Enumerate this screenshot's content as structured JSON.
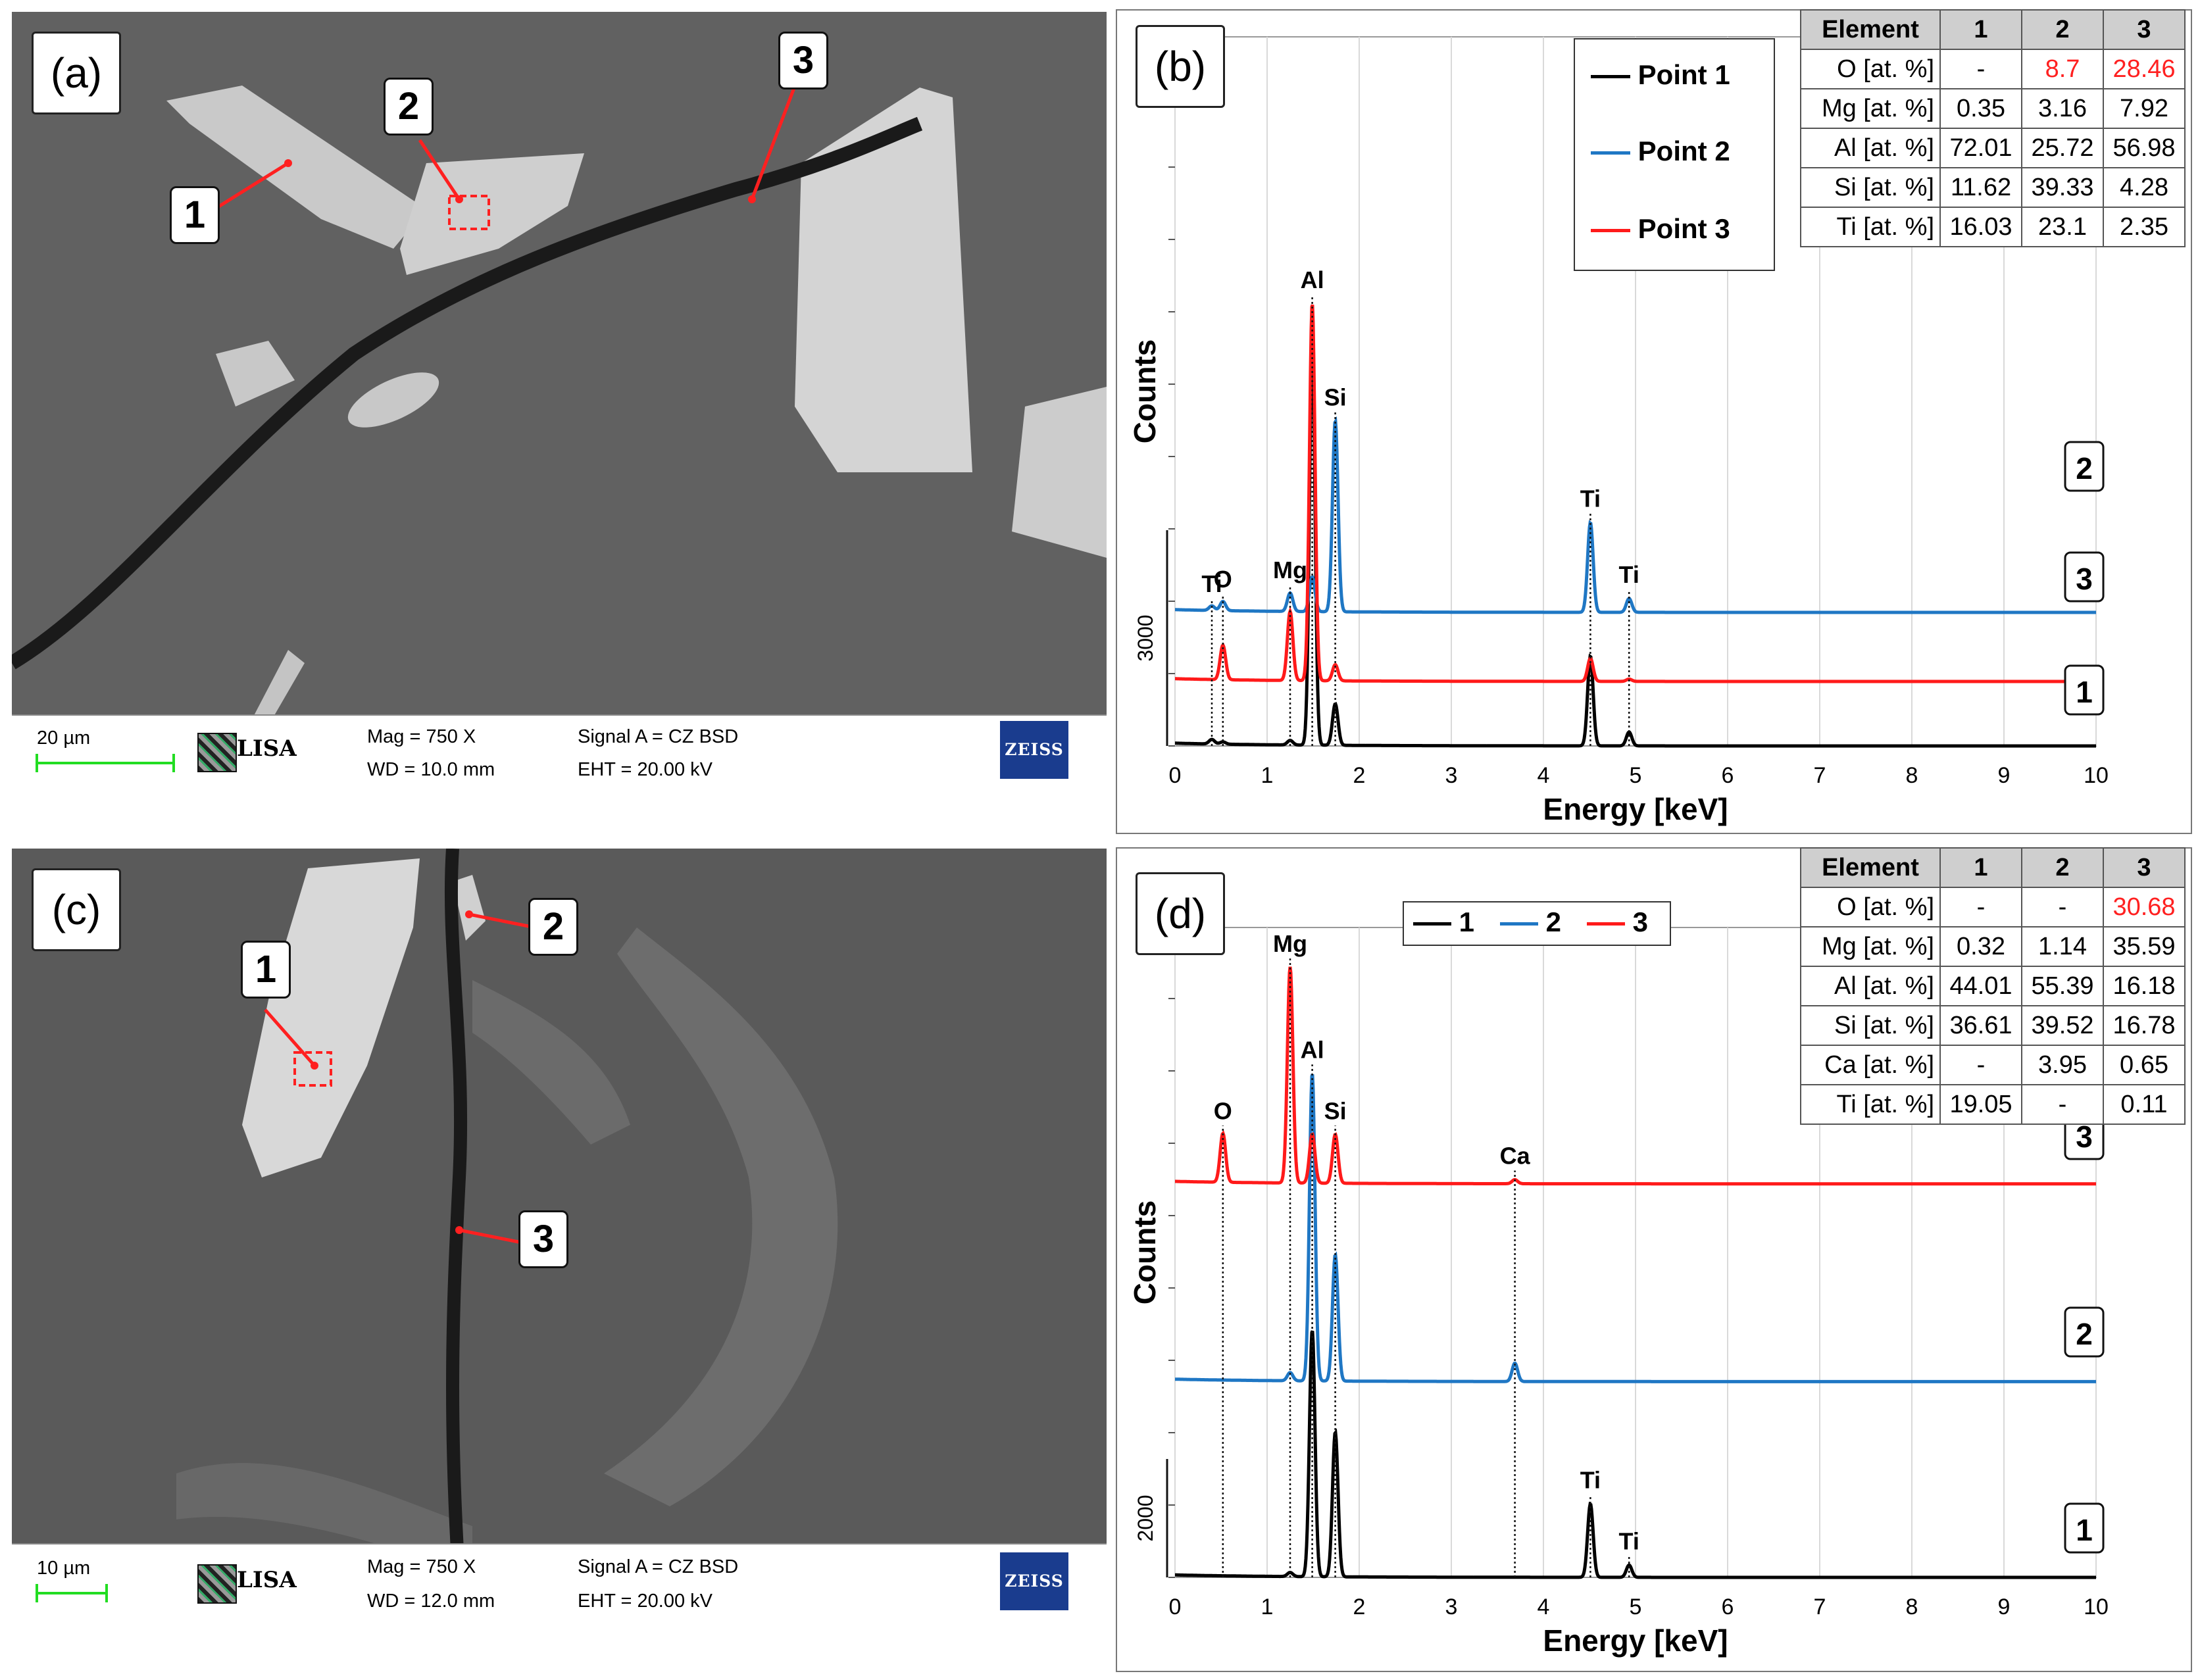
{
  "panels": {
    "a": {
      "label": "(a)",
      "callouts": [
        "1",
        "2",
        "3"
      ],
      "infobar": {
        "scale": "20 µm",
        "mag": "Mag =     750 X",
        "wd": "WD = 10.0 mm",
        "signal": "Signal A = CZ BSD",
        "eht": "EHT = 20.00 kV",
        "logo_lisa": "LISA",
        "logo_zeiss": "ZEISS"
      }
    },
    "b": {
      "label": "(b)",
      "legend": [
        "Point 1",
        "Point 2",
        "Point 3"
      ],
      "table": {
        "headers": [
          "Element",
          "1",
          "2",
          "3"
        ],
        "rows": [
          [
            "O [at. %]",
            "-",
            "8.7",
            "28.46"
          ],
          [
            "Mg [at. %]",
            "0.35",
            "3.16",
            "7.92"
          ],
          [
            "Al [at. %]",
            "72.01",
            "25.72",
            "56.98"
          ],
          [
            "Si [at. %]",
            "11.62",
            "39.33",
            "4.28"
          ],
          [
            "Ti [at. %]",
            "16.03",
            "23.1",
            "2.35"
          ]
        ]
      },
      "curve_tags": [
        "2",
        "3",
        "1"
      ],
      "scale_bar_label": "3000"
    },
    "c": {
      "label": "(c)",
      "callouts": [
        "1",
        "2",
        "3"
      ],
      "infobar": {
        "scale": "10 µm",
        "mag": "Mag =     750 X",
        "wd": "WD = 12.0 mm",
        "signal": "Signal A = CZ BSD",
        "eht": "EHT = 20.00 kV",
        "logo_lisa": "LISA",
        "logo_zeiss": "ZEISS"
      }
    },
    "d": {
      "label": "(d)",
      "legend": [
        "1",
        "2",
        "3"
      ],
      "table": {
        "headers": [
          "Element",
          "1",
          "2",
          "3"
        ],
        "rows": [
          [
            "O [at. %]",
            "-",
            "-",
            "30.68"
          ],
          [
            "Mg [at. %]",
            "0.32",
            "1.14",
            "35.59"
          ],
          [
            "Al [at. %]",
            "44.01",
            "55.39",
            "16.18"
          ],
          [
            "Si [at. %]",
            "36.61",
            "39.52",
            "16.78"
          ],
          [
            "Ca [at. %]",
            "-",
            "3.95",
            "0.65"
          ],
          [
            "Ti [at. %]",
            "19.05",
            "-",
            "0.11"
          ]
        ]
      },
      "curve_tags": [
        "3",
        "2",
        "1"
      ],
      "scale_bar_label": "2000"
    }
  },
  "colors": {
    "point1": "#000000",
    "point2": "#1f77c4",
    "point3": "#ff1a1a",
    "highlight": "#ff2020",
    "zeiss_blue": "#1a3c8e",
    "scale_green": "#22dd22"
  },
  "chart_data": [
    {
      "type": "line",
      "panel": "b",
      "xlabel": "Energy [keV]",
      "ylabel": "Counts",
      "xlim": [
        0,
        10
      ],
      "x_ticks": [
        0,
        1,
        2,
        3,
        4,
        5,
        6,
        7,
        8,
        9,
        10
      ],
      "grid": true,
      "legend_position": "top-right",
      "peak_labels": [
        {
          "text": "Ti",
          "x": 0.4
        },
        {
          "text": "O",
          "x": 0.52
        },
        {
          "text": "Mg",
          "x": 1.25
        },
        {
          "text": "Al",
          "x": 1.49
        },
        {
          "text": "Si",
          "x": 1.74
        },
        {
          "text": "Ti",
          "x": 4.51
        },
        {
          "text": "Ti",
          "x": 4.93
        }
      ],
      "series": [
        {
          "name": "Point 1",
          "color": "#000000",
          "offset": 0,
          "peaks": [
            [
              0.4,
              0.2
            ],
            [
              0.52,
              0.1
            ],
            [
              1.25,
              0.2
            ],
            [
              1.49,
              17.5
            ],
            [
              1.74,
              1.8
            ],
            [
              4.51,
              3.9
            ],
            [
              4.93,
              0.6
            ]
          ]
        },
        {
          "name": "Point 2",
          "color": "#1f77c4",
          "offset": 5.8,
          "peaks": [
            [
              0.4,
              0.2
            ],
            [
              0.52,
              0.4
            ],
            [
              1.25,
              0.8
            ],
            [
              1.49,
              1.5
            ],
            [
              1.74,
              8.3
            ],
            [
              4.51,
              3.9
            ],
            [
              4.93,
              0.6
            ]
          ]
        },
        {
          "name": "Point 3",
          "color": "#ff1a1a",
          "offset": 2.8,
          "peaks": [
            [
              0.52,
              1.5
            ],
            [
              1.25,
              3.0
            ],
            [
              1.49,
              16.4
            ],
            [
              1.74,
              0.7
            ],
            [
              4.51,
              1.0
            ],
            [
              4.93,
              0.1
            ]
          ]
        }
      ]
    },
    {
      "type": "line",
      "panel": "d",
      "xlabel": "Energy [keV]",
      "ylabel": "Counts",
      "xlim": [
        0,
        10
      ],
      "x_ticks": [
        0,
        1,
        2,
        3,
        4,
        5,
        6,
        7,
        8,
        9,
        10
      ],
      "grid": true,
      "legend_position": "top",
      "peak_labels": [
        {
          "text": "O",
          "x": 0.52
        },
        {
          "text": "Mg",
          "x": 1.25
        },
        {
          "text": "Al",
          "x": 1.49
        },
        {
          "text": "Si",
          "x": 1.74
        },
        {
          "text": "Ca",
          "x": 3.69
        },
        {
          "text": "Ti",
          "x": 4.51
        },
        {
          "text": "Ti",
          "x": 4.93
        }
      ],
      "series": [
        {
          "name": "1",
          "color": "#000000",
          "offset": 0,
          "peaks": [
            [
              1.25,
              0.2
            ],
            [
              1.49,
              12.1
            ],
            [
              1.74,
              7.1
            ],
            [
              4.51,
              3.6
            ],
            [
              4.93,
              0.6
            ]
          ]
        },
        {
          "name": "2",
          "color": "#1f77c4",
          "offset": 9.6,
          "peaks": [
            [
              1.25,
              0.4
            ],
            [
              1.49,
              15.1
            ],
            [
              1.74,
              6.2
            ],
            [
              3.69,
              0.9
            ]
          ]
        },
        {
          "name": "3",
          "color": "#ff1a1a",
          "offset": 19.3,
          "peaks": [
            [
              0.52,
              2.4
            ],
            [
              1.25,
              10.6
            ],
            [
              1.49,
              2.4
            ],
            [
              1.74,
              2.4
            ],
            [
              3.69,
              0.2
            ]
          ]
        }
      ]
    }
  ]
}
